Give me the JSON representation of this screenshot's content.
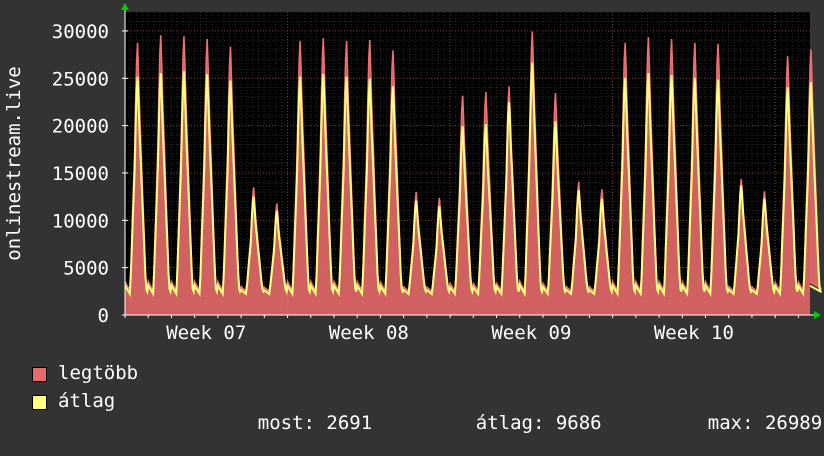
{
  "colors": {
    "background": "#333333",
    "plot_background": "#000000",
    "grid": "#4a4a4a",
    "axis": "#ffffff",
    "arrow": "#00cc00",
    "max_line": "#f07070",
    "max_fill": "#e86a6a",
    "avg_line": "#ffff80",
    "text": "#ffffff"
  },
  "legend": {
    "max_label": "legtöbb",
    "avg_label": "átlag",
    "now_label": "most:",
    "now_value": "2691",
    "avg_stat_label": "átlag:",
    "avg_stat_value": "9686",
    "max_stat_label": "max:",
    "max_stat_value": "26989"
  },
  "chart_data": {
    "type": "area",
    "title": "",
    "xlabel": "",
    "ylabel": "onlinestream.live",
    "ylim": [
      0,
      32000
    ],
    "yticks": [
      0,
      5000,
      10000,
      15000,
      20000,
      25000,
      30000
    ],
    "xtick_labels": [
      "Week 07",
      "Week 08",
      "Week 09",
      "Week 10"
    ],
    "grid": true,
    "legend_position": "bottom",
    "x_unit": "days",
    "x_range": [
      0,
      29.5
    ],
    "xtick_positions": [
      3.5,
      10.5,
      17.5,
      24.5
    ],
    "series": [
      {
        "name": "legtöbb",
        "style": "filled",
        "daily_peaks": [
          28800,
          29600,
          29500,
          29200,
          28400,
          13500,
          11800,
          29000,
          29300,
          29000,
          29100,
          28000,
          13000,
          12400,
          23200,
          23600,
          24200,
          30000,
          23500,
          14100,
          13300,
          28800,
          29400,
          29200,
          28800,
          28700,
          14400,
          13100,
          27400,
          28100
        ],
        "daily_min": 2500
      },
      {
        "name": "átlag",
        "style": "line",
        "daily_peaks": [
          25200,
          25600,
          25800,
          25500,
          24800,
          12500,
          11000,
          25200,
          25500,
          25200,
          25000,
          24200,
          12100,
          11500,
          20000,
          20200,
          22500,
          26700,
          20500,
          13200,
          12300,
          25100,
          25600,
          25400,
          25100,
          24900,
          13700,
          12300,
          24100,
          24600
        ],
        "daily_min": 2200
      }
    ]
  }
}
